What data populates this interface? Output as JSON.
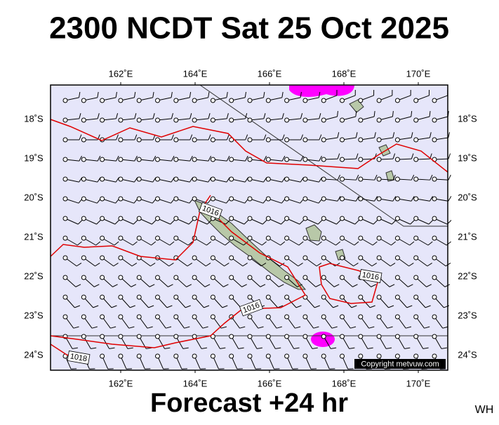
{
  "title": "2300 NCDT Sat 25 Oct 2025",
  "footer": "Forecast +24 hr",
  "credit": "WH",
  "map": {
    "longitude_labels": [
      "162˚E",
      "164˚E",
      "166˚E",
      "168˚E",
      "170˚E"
    ],
    "latitude_labels": [
      "18˚S",
      "19˚S",
      "20˚S",
      "21˚S",
      "22˚S",
      "23˚S",
      "24˚S"
    ],
    "isobar_labels": [
      "1016",
      "1016",
      "1016",
      "1018"
    ],
    "copyright": "Copyright metvuw.com"
  }
}
